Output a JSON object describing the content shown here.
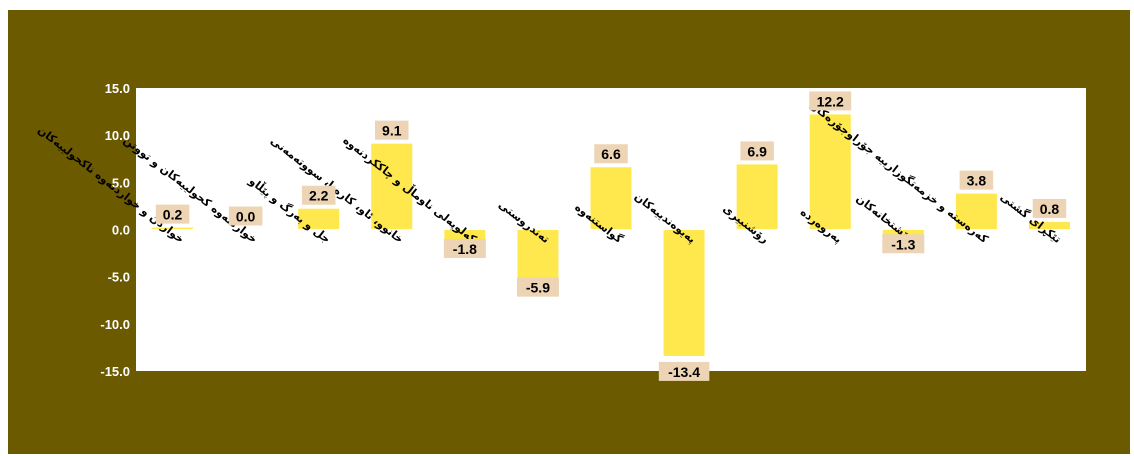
{
  "chart_data": {
    "type": "bar",
    "categories": [
      "خواردن و خواردنەوە ناکحولییەکان",
      "خواردنەوە کحولییەکان و تووتن",
      "جل و بەرگ و پێڵاو",
      "خانوو، ئاو، کارەبا، سووتەمەنی",
      "کەلوپەلی ناوماڵ و چاککردنەوە",
      "تەندروستی",
      "گواستنەوە",
      "پەیوەندییەکان",
      "رۆشنبیری",
      "پەروەردە",
      "چێشتخانەکان",
      "کەرەستە و خزمەتگوزارییە جۆراوجۆرەکان",
      "تێکڕای گشتی"
    ],
    "values": [
      0.2,
      0.0,
      2.2,
      9.1,
      -1.8,
      -5.9,
      6.6,
      -13.4,
      6.9,
      12.2,
      -1.3,
      3.8,
      0.8
    ],
    "value_labels": [
      "0.2",
      "0.0",
      "2.2",
      "9.1",
      "-1.8",
      "-5.9",
      "6.6",
      "-13.4",
      "6.9",
      "12.2",
      "-1.3",
      "3.8",
      "0.8"
    ],
    "y_ticks": [
      "15.0",
      "10.0",
      "5.0",
      "0.0",
      "-5.0",
      "-10.0",
      "-15.0"
    ],
    "y_tick_values": [
      15,
      10,
      5,
      0,
      -5,
      -10,
      -15
    ],
    "ylim": [
      -15,
      15
    ],
    "title": "",
    "xlabel": "",
    "ylabel": "",
    "grid": false,
    "legend": "none",
    "colors": {
      "frame": "#6b5a00",
      "plot_area": "#ffffff",
      "bar": "#ffe84d",
      "label_box": "#ecd4b4",
      "axis_text": "#ffffff",
      "category_text": "#000000"
    }
  }
}
